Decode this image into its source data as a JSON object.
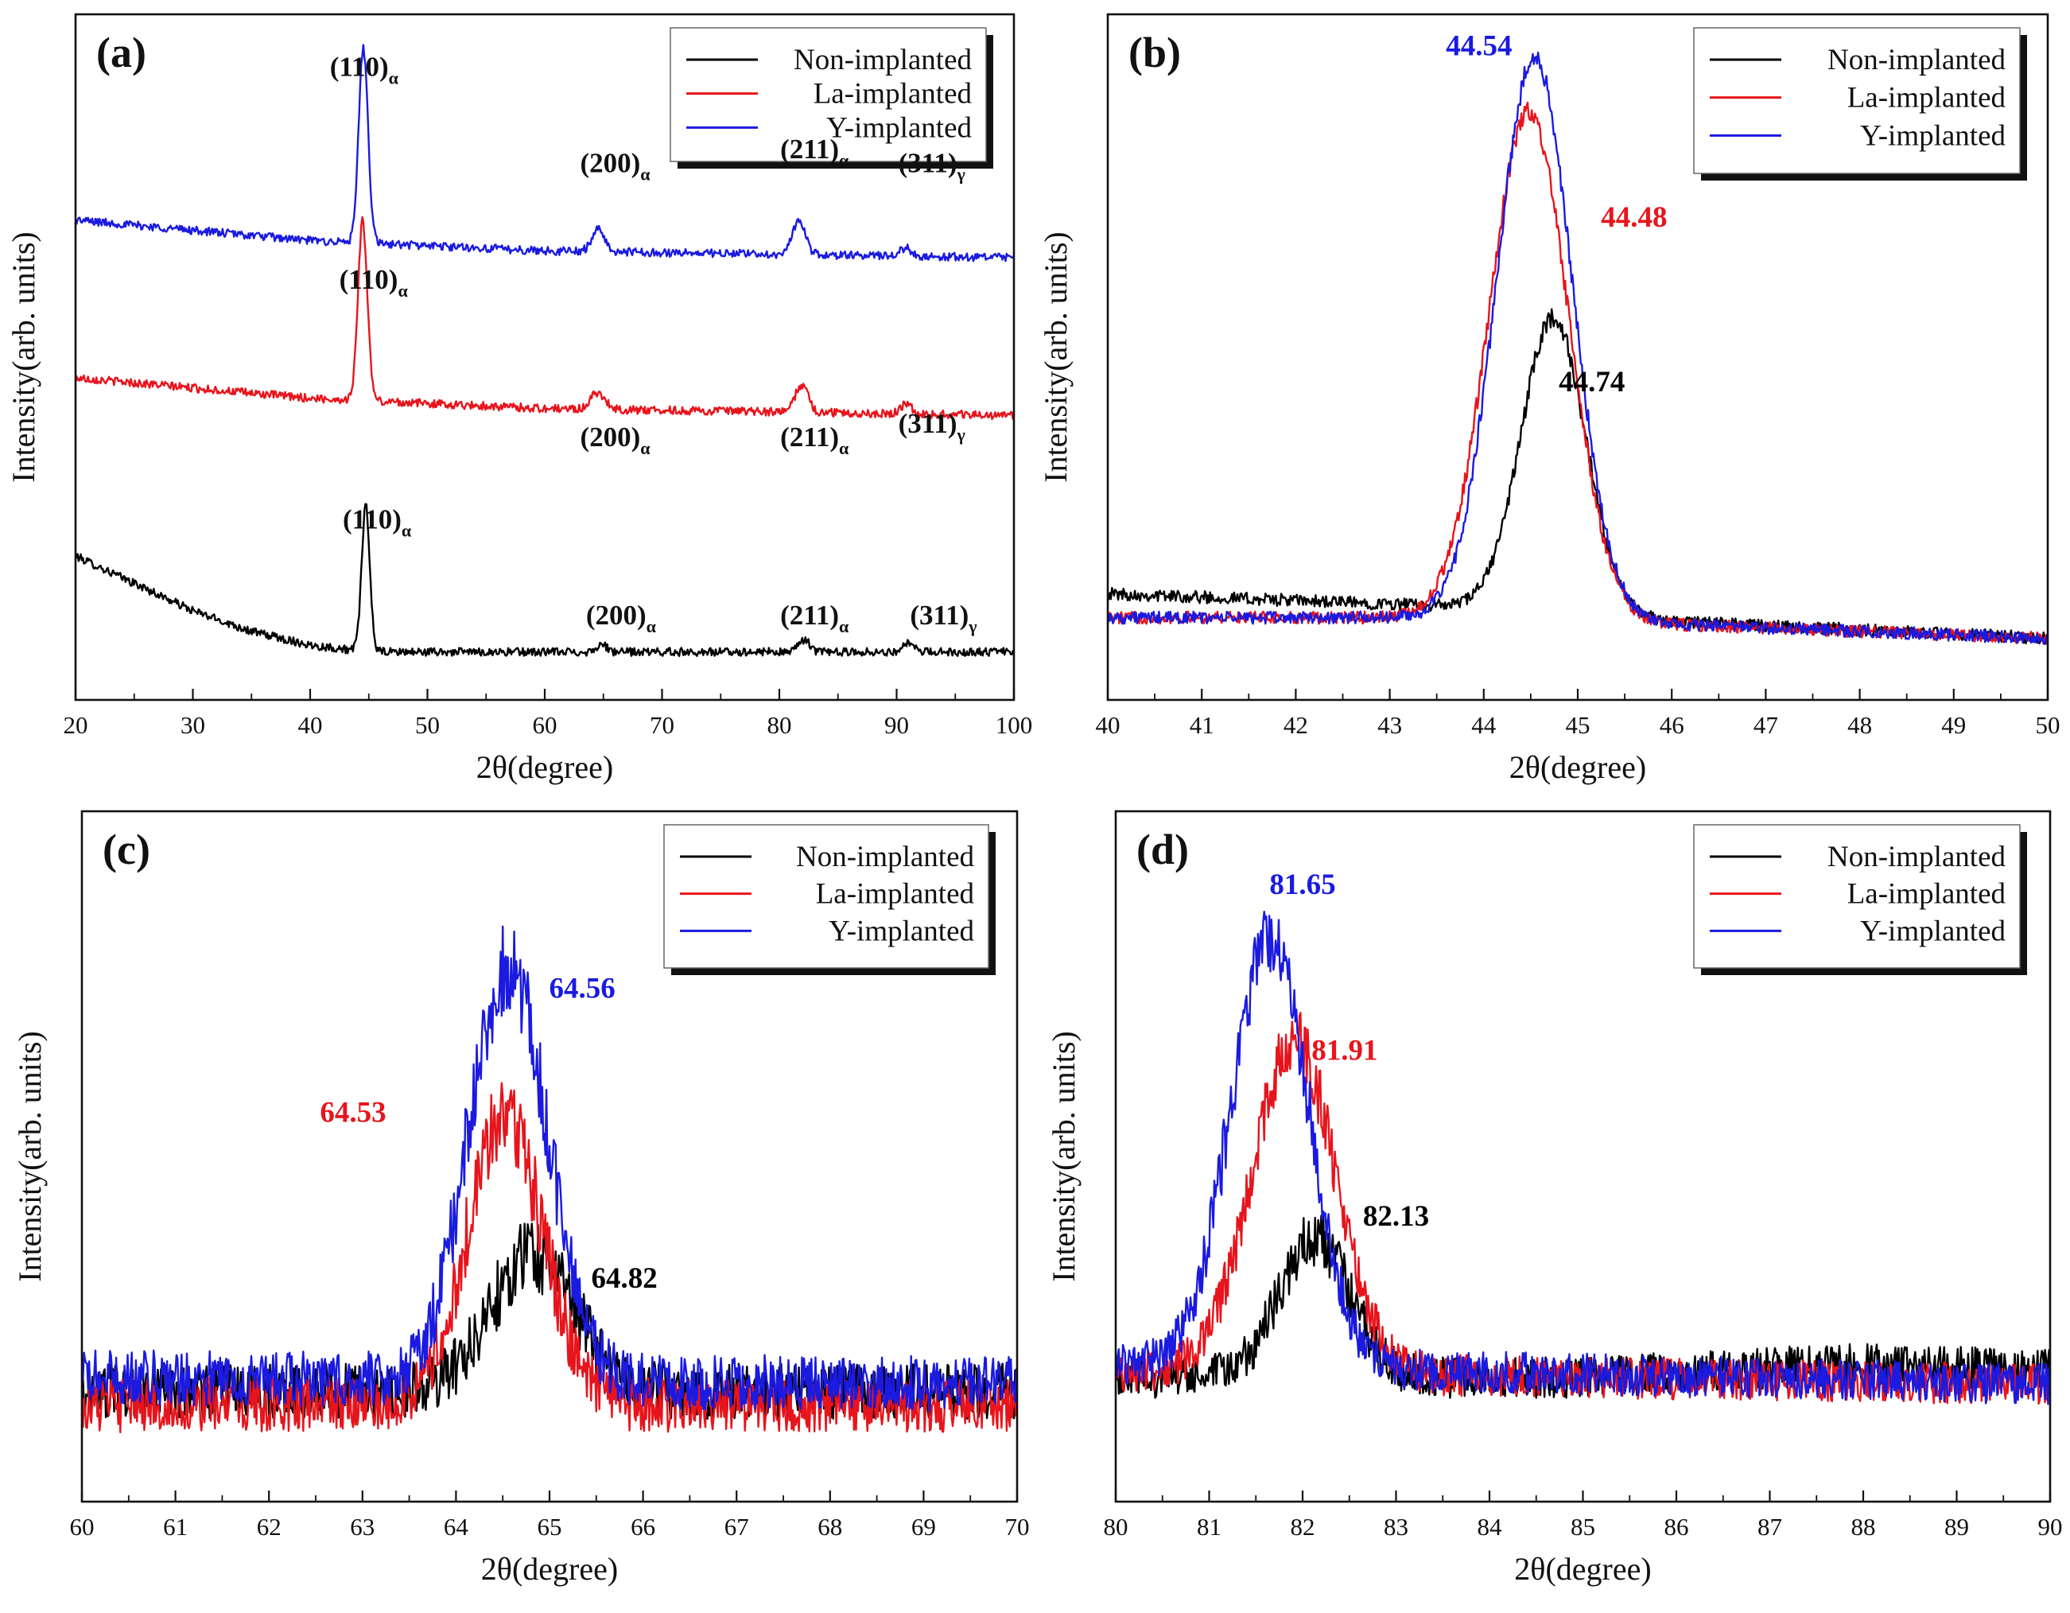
{
  "colors": {
    "non": "#000000",
    "la": "#e8141c",
    "y": "#1a1ae0"
  },
  "legend": [
    "Non-implanted",
    "La-implanted",
    "Y-implanted"
  ],
  "chart_data": [
    {
      "id": "a",
      "type": "line",
      "panel_label": "(a)",
      "xlabel": "2θ(degree)",
      "ylabel": "Intensity(arb. units)",
      "xlim": [
        20,
        100
      ],
      "ylim": [
        0,
        100
      ],
      "xticks": [
        20,
        30,
        40,
        50,
        60,
        70,
        80,
        90,
        100
      ],
      "xtick_labels": [
        "20",
        "30",
        "40",
        "50",
        "60",
        "70",
        "80",
        "90",
        "100"
      ],
      "series": [
        {
          "name": "Non-implanted",
          "color": "#000000",
          "noise": 0.6,
          "offset": 4,
          "baseline": [
            [
              20,
              17
            ],
            [
              25,
              13
            ],
            [
              30,
              9
            ],
            [
              35,
              6
            ],
            [
              40,
              4
            ],
            [
              45,
              3
            ],
            [
              100,
              3
            ]
          ],
          "peaks": [
            [
              44.74,
              21,
              0.35
            ],
            [
              64.82,
              1.2,
              0.4
            ],
            [
              82.13,
              1.8,
              0.45
            ],
            [
              91.0,
              1.3,
              0.4
            ]
          ]
        },
        {
          "name": "La-implanted",
          "color": "#e8141c",
          "noise": 0.6,
          "offset": 41,
          "baseline": [
            [
              20,
              6
            ],
            [
              30,
              4.5
            ],
            [
              40,
              3
            ],
            [
              60,
              1.5
            ],
            [
              100,
              0.5
            ]
          ],
          "peaks": [
            [
              44.48,
              26,
              0.4
            ],
            [
              64.53,
              2.5,
              0.6
            ],
            [
              81.91,
              4,
              0.55
            ],
            [
              90.8,
              1.3,
              0.5
            ]
          ]
        },
        {
          "name": "Y-implanted",
          "color": "#1a1ae0",
          "noise": 0.6,
          "offset": 64,
          "baseline": [
            [
              20,
              6
            ],
            [
              30,
              4.5
            ],
            [
              40,
              3
            ],
            [
              60,
              1.5
            ],
            [
              100,
              0.5
            ]
          ],
          "peaks": [
            [
              44.54,
              28,
              0.4
            ],
            [
              64.56,
              3.2,
              0.55
            ],
            [
              81.65,
              4.8,
              0.55
            ],
            [
              90.8,
              1.2,
              0.5
            ]
          ]
        }
      ],
      "annotations": [
        {
          "hkl": "(110)",
          "phase": "α",
          "x": 44.6,
          "y": 91
        },
        {
          "hkl": "(200)",
          "phase": "α",
          "x": 66.0,
          "y": 77
        },
        {
          "hkl": "(211)",
          "phase": "α",
          "x": 83.0,
          "y": 79
        },
        {
          "hkl": "(311)",
          "phase": "γ",
          "x": 93.0,
          "y": 77
        },
        {
          "hkl": "(110)",
          "phase": "α",
          "x": 45.4,
          "y": 60
        },
        {
          "hkl": "(200)",
          "phase": "α",
          "x": 66.0,
          "y": 37
        },
        {
          "hkl": "(211)",
          "phase": "α",
          "x": 83.0,
          "y": 37
        },
        {
          "hkl": "(311)",
          "phase": "γ",
          "x": 93.0,
          "y": 39
        },
        {
          "hkl": "(110)",
          "phase": "α",
          "x": 45.7,
          "y": 25
        },
        {
          "hkl": "(200)",
          "phase": "α",
          "x": 66.5,
          "y": 11
        },
        {
          "hkl": "(211)",
          "phase": "α",
          "x": 83.0,
          "y": 11
        },
        {
          "hkl": "(311)",
          "phase": "γ",
          "x": 94.0,
          "y": 11
        }
      ]
    },
    {
      "id": "b",
      "type": "line",
      "panel_label": "(b)",
      "xlabel": "2θ(degree)",
      "ylabel": "Intensity(arb. units)",
      "xlim": [
        40,
        50
      ],
      "ylim": [
        0,
        100
      ],
      "xticks": [
        40,
        41,
        42,
        43,
        44,
        45,
        46,
        47,
        48,
        49,
        50
      ],
      "xtick_labels": [
        "40",
        "41",
        "42",
        "43",
        "44",
        "45",
        "46",
        "47",
        "48",
        "49",
        "50"
      ],
      "series": [
        {
          "name": "Non-implanted",
          "color": "#000000",
          "noise": 0.9,
          "offset": 0,
          "baseline": [
            [
              40,
              15.5
            ],
            [
              42,
              14.5
            ],
            [
              44,
              13.5
            ],
            [
              46,
              11.5
            ],
            [
              50,
              9
            ]
          ],
          "peaks": [
            [
              44.74,
              43,
              0.34
            ]
          ]
        },
        {
          "name": "La-implanted",
          "color": "#e8141c",
          "noise": 0.9,
          "offset": 0,
          "baseline": [
            [
              40,
              12
            ],
            [
              42,
              12
            ],
            [
              44,
              12
            ],
            [
              46,
              11
            ],
            [
              50,
              9
            ]
          ],
          "peaks": [
            [
              44.48,
              74,
              0.42
            ]
          ]
        },
        {
          "name": "Y-implanted",
          "color": "#1a1ae0",
          "noise": 0.9,
          "offset": 0,
          "baseline": [
            [
              40,
              12
            ],
            [
              42,
              12
            ],
            [
              44,
              12
            ],
            [
              46,
              11
            ],
            [
              50,
              9
            ]
          ],
          "peaks": [
            [
              44.54,
              82,
              0.4
            ]
          ]
        }
      ],
      "peak_labels": [
        {
          "text": "44.54",
          "color": "#1a1ae0",
          "x": 43.95,
          "y": 94
        },
        {
          "text": "44.48",
          "color": "#e8141c",
          "x": 45.6,
          "y": 69
        },
        {
          "text": "44.74",
          "color": "#000000",
          "x": 45.15,
          "y": 45
        }
      ]
    },
    {
      "id": "c",
      "type": "line",
      "panel_label": "(c)",
      "xlabel": "2θ(degree)",
      "ylabel": "Intensity(arb. units)",
      "xlim": [
        60,
        70
      ],
      "ylim": [
        0,
        100
      ],
      "xticks": [
        60,
        61,
        62,
        63,
        64,
        65,
        66,
        67,
        68,
        69,
        70
      ],
      "xtick_labels": [
        "60",
        "61",
        "62",
        "63",
        "64",
        "65",
        "66",
        "67",
        "68",
        "69",
        "70"
      ],
      "series": [
        {
          "name": "Non-implanted",
          "color": "#000000",
          "noise": 4,
          "offset": 0,
          "baseline": [
            [
              60,
              16
            ],
            [
              70,
              16
            ]
          ],
          "peaks": [
            [
              64.82,
              20,
              0.45
            ]
          ]
        },
        {
          "name": "La-implanted",
          "color": "#e8141c",
          "noise": 4,
          "offset": 0,
          "baseline": [
            [
              60,
              14
            ],
            [
              70,
              14
            ]
          ],
          "peaks": [
            [
              64.53,
              42,
              0.4
            ]
          ]
        },
        {
          "name": "Y-implanted",
          "color": "#1a1ae0",
          "noise": 4,
          "offset": 0,
          "baseline": [
            [
              60,
              18
            ],
            [
              70,
              17
            ]
          ],
          "peaks": [
            [
              64.56,
              60,
              0.42
            ]
          ]
        }
      ],
      "peak_labels": [
        {
          "text": "64.56",
          "color": "#1a1ae0",
          "x": 65.35,
          "y": 73
        },
        {
          "text": "64.53",
          "color": "#e8141c",
          "x": 62.9,
          "y": 55
        },
        {
          "text": "64.82",
          "color": "#000000",
          "x": 65.8,
          "y": 31
        }
      ]
    },
    {
      "id": "d",
      "type": "line",
      "panel_label": "(d)",
      "xlabel": "2θ(degree)",
      "ylabel": "Intensity(arb. units)",
      "xlim": [
        80,
        90
      ],
      "ylim": [
        0,
        100
      ],
      "xticks": [
        80,
        81,
        82,
        83,
        84,
        85,
        86,
        87,
        88,
        89,
        90
      ],
      "xtick_labels": [
        "80",
        "81",
        "82",
        "83",
        "84",
        "85",
        "86",
        "87",
        "88",
        "89",
        "90"
      ],
      "series": [
        {
          "name": "Non-implanted",
          "color": "#000000",
          "noise": 3,
          "offset": 0,
          "baseline": [
            [
              80,
              18
            ],
            [
              85,
              18
            ],
            [
              88,
              20
            ],
            [
              90,
              19
            ]
          ],
          "peaks": [
            [
              82.13,
              20,
              0.38
            ]
          ]
        },
        {
          "name": "La-implanted",
          "color": "#e8141c",
          "noise": 3,
          "offset": 0,
          "baseline": [
            [
              80,
              19
            ],
            [
              90,
              17
            ]
          ],
          "peaks": [
            [
              81.91,
              48,
              0.45
            ]
          ]
        },
        {
          "name": "Y-implanted",
          "color": "#1a1ae0",
          "noise": 3,
          "offset": 0,
          "baseline": [
            [
              80,
              20
            ],
            [
              90,
              17
            ]
          ],
          "peaks": [
            [
              81.65,
              62,
              0.42
            ]
          ]
        }
      ],
      "peak_labels": [
        {
          "text": "81.65",
          "color": "#1a1ae0",
          "x": 82.0,
          "y": 88
        },
        {
          "text": "81.91",
          "color": "#e8141c",
          "x": 82.45,
          "y": 64
        },
        {
          "text": "82.13",
          "color": "#000000",
          "x": 83.0,
          "y": 40
        }
      ]
    }
  ]
}
